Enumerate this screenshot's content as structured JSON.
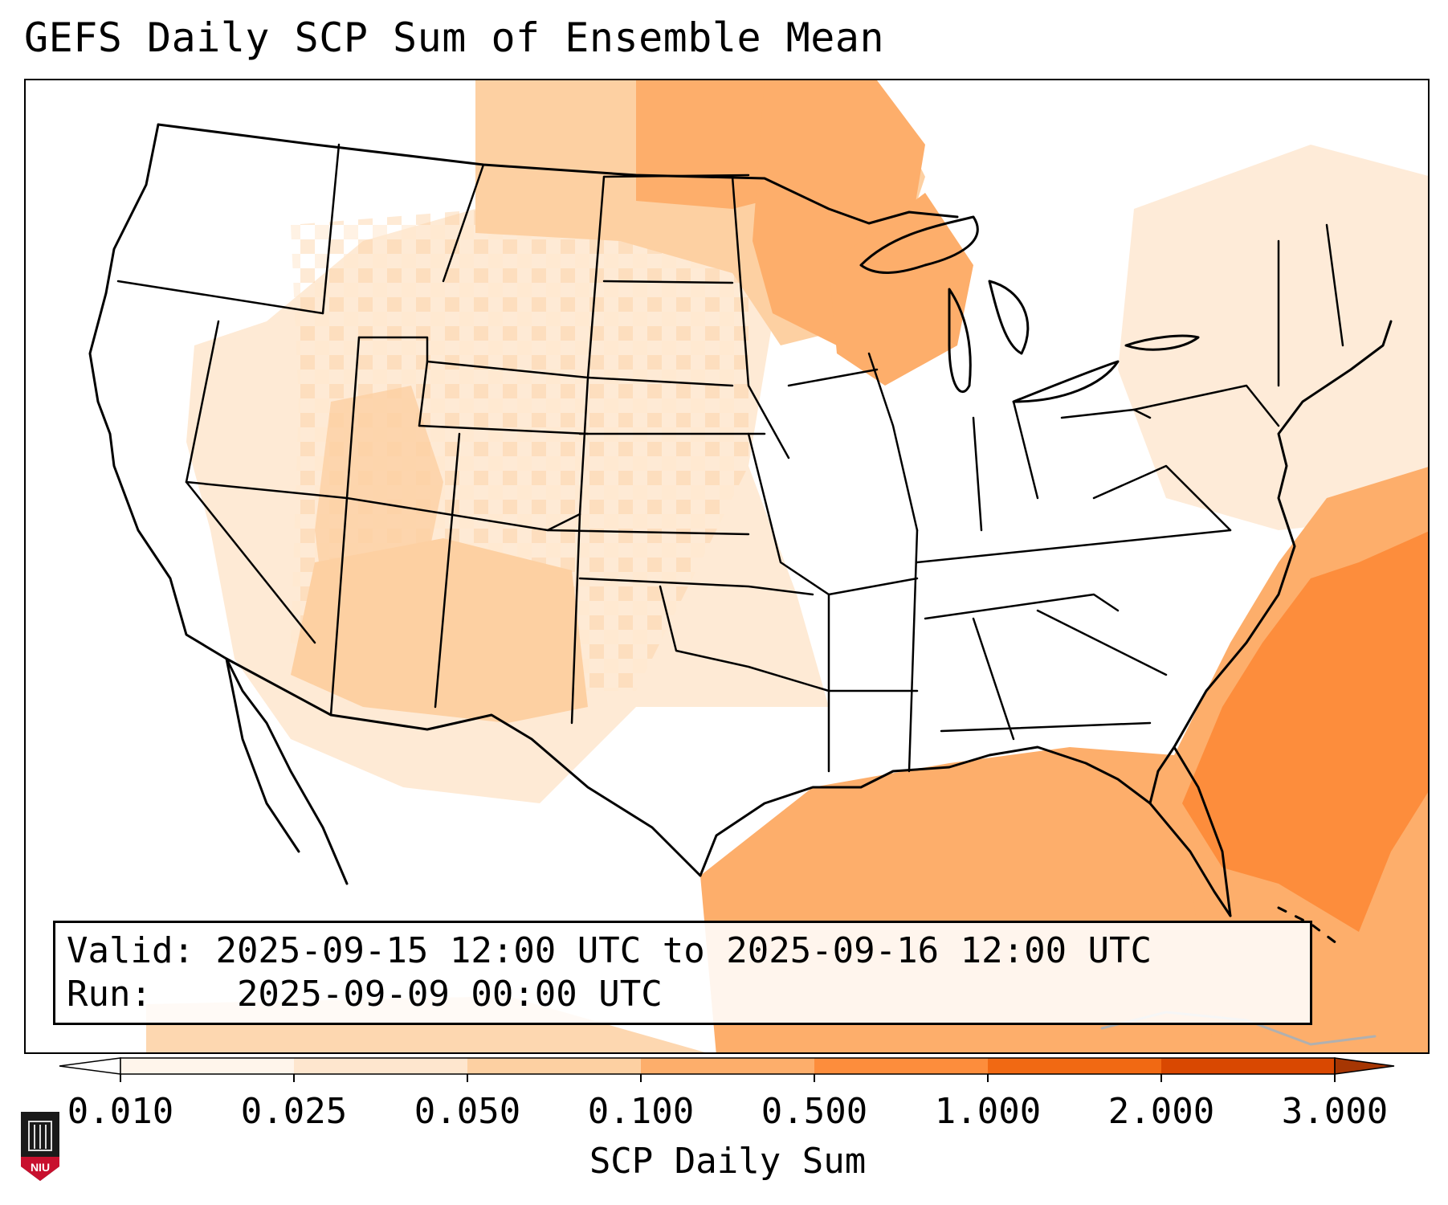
{
  "title": "GEFS Daily SCP Sum of Ensemble Mean",
  "info": {
    "valid_label": "Valid:",
    "valid_value": "2025-09-15 12:00 UTC to 2025-09-16 12:00 UTC",
    "run_label": "Run:",
    "run_value": "2025-09-09 00:00 UTC"
  },
  "colorbar": {
    "label": "SCP Daily Sum",
    "ticks": [
      "0.010",
      "0.025",
      "0.050",
      "0.100",
      "0.500",
      "1.000",
      "2.000",
      "3.000"
    ],
    "colors": [
      "#fff5eb",
      "#fee6ce",
      "#fdd0a2",
      "#fdae6b",
      "#fd8d3c",
      "#f16913",
      "#d94801"
    ],
    "under_color": "#ffffff",
    "over_color": "#a63603"
  },
  "map": {
    "projection": "Lambert conformal (CONUS)",
    "features": [
      "coastlines",
      "state borders",
      "country borders"
    ]
  },
  "logo": {
    "text": "NIU"
  }
}
